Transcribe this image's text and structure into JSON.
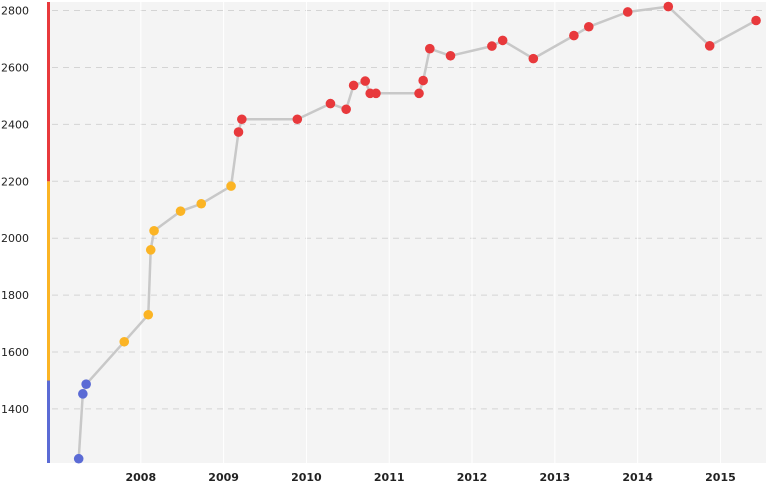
{
  "chart_data": {
    "type": "scatter",
    "title": "",
    "xlabel": "",
    "ylabel": "",
    "ylim": [
      1210,
      2830
    ],
    "xlim": [
      2007.0,
      2015.55
    ],
    "grid": true,
    "legend": "none",
    "y_ticks": [
      "1400",
      "1600",
      "1800",
      "2000",
      "2200",
      "2400",
      "2600",
      "2800"
    ],
    "x_ticks": [
      "2008",
      "2009",
      "2010",
      "2011",
      "2012",
      "2013",
      "2014",
      "2015"
    ],
    "colors": {
      "plot_background": "#f4f4f4",
      "line": "#c8c8c8",
      "blue": "#5b6bd5",
      "yellow": "#fbb424",
      "red": "#e8393c"
    },
    "bands": [
      {
        "from": 1210,
        "to": 1500,
        "color": "#5b6bd5"
      },
      {
        "from": 1500,
        "to": 2200,
        "color": "#fbb424"
      },
      {
        "from": 2200,
        "to": 2830,
        "color": "#e8393c"
      }
    ],
    "points": [
      {
        "x": 2007.25,
        "y": 1225,
        "color": "#5b6bd5"
      },
      {
        "x": 2007.3,
        "y": 1453,
        "color": "#5b6bd5"
      },
      {
        "x": 2007.34,
        "y": 1487,
        "color": "#5b6bd5"
      },
      {
        "x": 2007.8,
        "y": 1636,
        "color": "#fbb424"
      },
      {
        "x": 2008.09,
        "y": 1731,
        "color": "#fbb424"
      },
      {
        "x": 2008.12,
        "y": 1959,
        "color": "#fbb424"
      },
      {
        "x": 2008.16,
        "y": 2026,
        "color": "#fbb424"
      },
      {
        "x": 2008.48,
        "y": 2095,
        "color": "#fbb424"
      },
      {
        "x": 2008.73,
        "y": 2121,
        "color": "#fbb424"
      },
      {
        "x": 2009.09,
        "y": 2183,
        "color": "#fbb424"
      },
      {
        "x": 2009.18,
        "y": 2373,
        "color": "#e8393c"
      },
      {
        "x": 2009.22,
        "y": 2418,
        "color": "#e8393c"
      },
      {
        "x": 2009.89,
        "y": 2418,
        "color": "#e8393c"
      },
      {
        "x": 2010.29,
        "y": 2473,
        "color": "#e8393c"
      },
      {
        "x": 2010.48,
        "y": 2453,
        "color": "#e8393c"
      },
      {
        "x": 2010.57,
        "y": 2537,
        "color": "#e8393c"
      },
      {
        "x": 2010.71,
        "y": 2552,
        "color": "#e8393c"
      },
      {
        "x": 2010.77,
        "y": 2509,
        "color": "#e8393c"
      },
      {
        "x": 2010.84,
        "y": 2509,
        "color": "#e8393c"
      },
      {
        "x": 2011.36,
        "y": 2509,
        "color": "#e8393c"
      },
      {
        "x": 2011.41,
        "y": 2554,
        "color": "#e8393c"
      },
      {
        "x": 2011.49,
        "y": 2666,
        "color": "#e8393c"
      },
      {
        "x": 2011.74,
        "y": 2641,
        "color": "#e8393c"
      },
      {
        "x": 2012.24,
        "y": 2675,
        "color": "#e8393c"
      },
      {
        "x": 2012.37,
        "y": 2695,
        "color": "#e8393c"
      },
      {
        "x": 2012.74,
        "y": 2631,
        "color": "#e8393c"
      },
      {
        "x": 2013.23,
        "y": 2712,
        "color": "#e8393c"
      },
      {
        "x": 2013.41,
        "y": 2743,
        "color": "#e8393c"
      },
      {
        "x": 2013.88,
        "y": 2795,
        "color": "#e8393c"
      },
      {
        "x": 2014.37,
        "y": 2814,
        "color": "#e8393c"
      },
      {
        "x": 2014.87,
        "y": 2676,
        "color": "#e8393c"
      },
      {
        "x": 2015.43,
        "y": 2765,
        "color": "#e8393c"
      }
    ]
  }
}
